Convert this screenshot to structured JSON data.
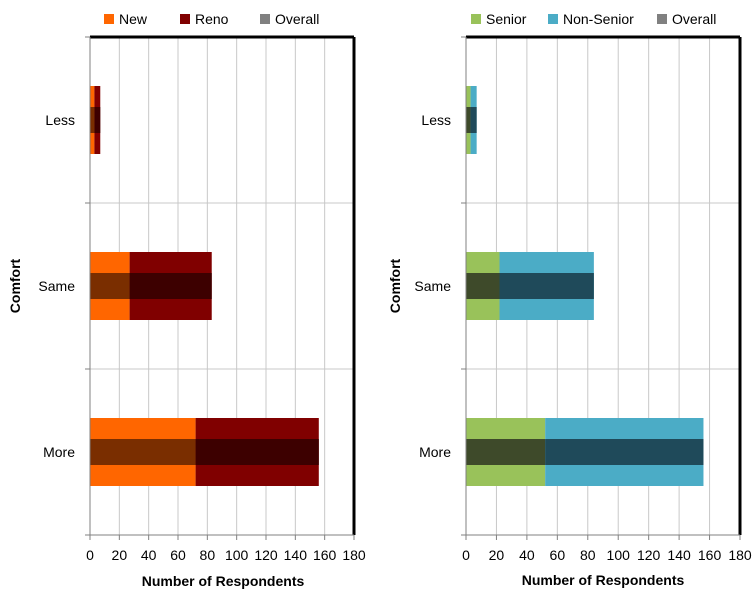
{
  "chart_data": [
    {
      "type": "bar",
      "orientation": "horizontal",
      "stacked": true,
      "categories": [
        "Less",
        "Same",
        "More"
      ],
      "series": [
        {
          "name": "New",
          "values": [
            3,
            27,
            72
          ],
          "color": "#FF6600"
        },
        {
          "name": "Reno",
          "values": [
            4,
            56,
            84
          ],
          "color": "#800000"
        },
        {
          "name": "Overall",
          "values": [
            7,
            83,
            156
          ],
          "color": "#808080"
        }
      ],
      "overall_segment_colors": [
        "#7A2E00",
        "#3D0000"
      ],
      "xlabel": "Number of Respondents",
      "ylabel": "Comfort",
      "xlim": [
        0,
        180
      ],
      "xticks": [
        "0",
        "20",
        "40",
        "60",
        "80",
        "100",
        "120",
        "140",
        "160",
        "180"
      ],
      "grid": true,
      "legend": "top"
    },
    {
      "type": "bar",
      "orientation": "horizontal",
      "stacked": true,
      "categories": [
        "Less",
        "Same",
        "More"
      ],
      "series": [
        {
          "name": "Senior",
          "values": [
            3,
            22,
            52
          ],
          "color": "#99C25A"
        },
        {
          "name": "Non-Senior",
          "values": [
            4,
            62,
            104
          ],
          "color": "#4BACC6"
        },
        {
          "name": "Overall",
          "values": [
            7,
            84,
            156
          ],
          "color": "#808080"
        }
      ],
      "overall_segment_colors": [
        "#3E4A2A",
        "#1F4A5A"
      ],
      "xlabel": "Number of Respondents",
      "ylabel": "Comfort",
      "xlim": [
        0,
        180
      ],
      "xticks": [
        "0",
        "20",
        "40",
        "60",
        "80",
        "100",
        "120",
        "140",
        "160",
        "180"
      ],
      "grid": true,
      "legend": "top"
    }
  ]
}
